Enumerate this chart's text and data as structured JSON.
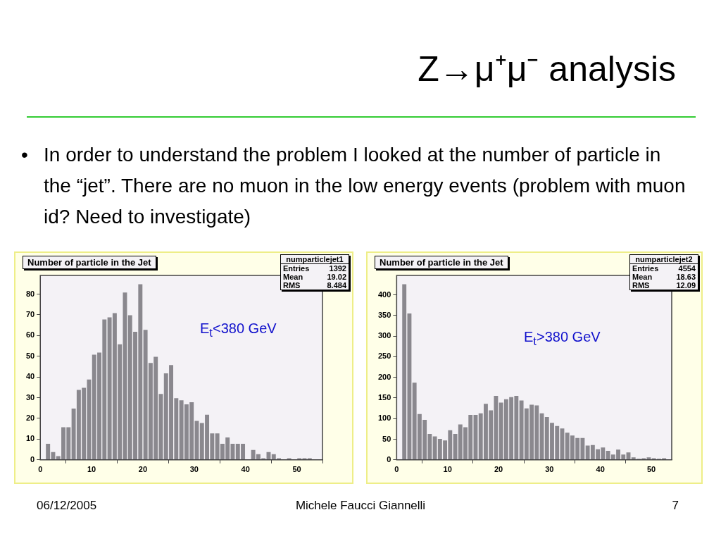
{
  "chart_data": [
    {
      "type": "other",
      "title": "Z→μ⁺μ⁻ analysis",
      "annotations": [
        "•",
        "In order to understand the problem I looked at the number of particle in the “jet”. There are no muon in the low energy events (problem with muon id? Need to investigate)",
        "06/12/2005",
        "Michele Faucci Giannelli",
        "7"
      ]
    },
    {
      "type": "histogram",
      "title": "Number of particle in the Jet",
      "color": "#8a888e",
      "bins": [
        0,
        1,
        2,
        3,
        4,
        5,
        6,
        7,
        8,
        9,
        10,
        11,
        12,
        13,
        14,
        15,
        16,
        17,
        18,
        19,
        20,
        21,
        22,
        23,
        24,
        25,
        26,
        27,
        28,
        29,
        30,
        31,
        32,
        33,
        34,
        35,
        36,
        37,
        38,
        39,
        40,
        41,
        42,
        43,
        44,
        45,
        46,
        47,
        48,
        49,
        50,
        51,
        52,
        53,
        54,
        55
      ],
      "values": [
        0,
        8,
        4,
        2,
        16,
        16,
        25,
        34,
        35,
        39,
        51,
        52,
        68,
        69,
        71,
        56,
        81,
        70,
        62,
        85,
        63,
        47,
        50,
        32,
        42,
        46,
        30,
        29,
        27,
        28,
        19,
        18,
        22,
        13,
        13,
        8,
        11,
        8,
        8,
        8,
        0,
        5,
        3,
        1,
        4,
        3,
        1,
        0,
        1,
        0,
        1,
        1,
        1,
        0,
        0
      ],
      "xlim": [
        0,
        55
      ],
      "xticks": [
        0,
        10,
        20,
        30,
        40,
        50
      ],
      "ylim": [
        0,
        89
      ],
      "yticks": [
        0,
        10,
        20,
        30,
        40,
        50,
        60,
        70,
        80
      ],
      "grid": false,
      "legend": false,
      "annotations": [
        "numparticlejet1",
        "Entries 1392",
        "Mean 19.02",
        "RMS 8.484",
        "E$_{t}$<380 GeV"
      ]
    },
    {
      "type": "histogram",
      "title": "Number of particle in the Jet",
      "color": "#8a888e",
      "bins": [
        0,
        1,
        2,
        3,
        4,
        5,
        6,
        7,
        8,
        9,
        10,
        11,
        12,
        13,
        14,
        15,
        16,
        17,
        18,
        19,
        20,
        21,
        22,
        23,
        24,
        25,
        26,
        27,
        28,
        29,
        30,
        31,
        32,
        33,
        34,
        35,
        36,
        37,
        38,
        39,
        40,
        41,
        42,
        43,
        44,
        45,
        46,
        47,
        48,
        49,
        50,
        51,
        52,
        53,
        54
      ],
      "values": [
        0,
        427,
        356,
        188,
        112,
        98,
        64,
        58,
        52,
        48,
        73,
        64,
        87,
        80,
        110,
        110,
        114,
        137,
        121,
        156,
        140,
        148,
        153,
        156,
        145,
        126,
        135,
        133,
        114,
        105,
        91,
        83,
        77,
        67,
        60,
        54,
        54,
        36,
        37,
        27,
        31,
        23,
        14,
        26,
        14,
        19,
        7,
        3,
        5,
        7,
        5,
        3,
        5,
        0
      ],
      "xlim": [
        0,
        54
      ],
      "xticks": [
        0,
        10,
        20,
        30,
        40,
        50
      ],
      "ylim": [
        0,
        447
      ],
      "yticks": [
        0,
        50,
        100,
        150,
        200,
        250,
        300,
        350,
        400
      ],
      "grid": false,
      "legend": false,
      "annotations": [
        "numparticlejet2",
        "Entries 4554",
        "Mean 18.63",
        "RMS 12.09",
        "E$_{t}$>380 GeV"
      ]
    }
  ]
}
